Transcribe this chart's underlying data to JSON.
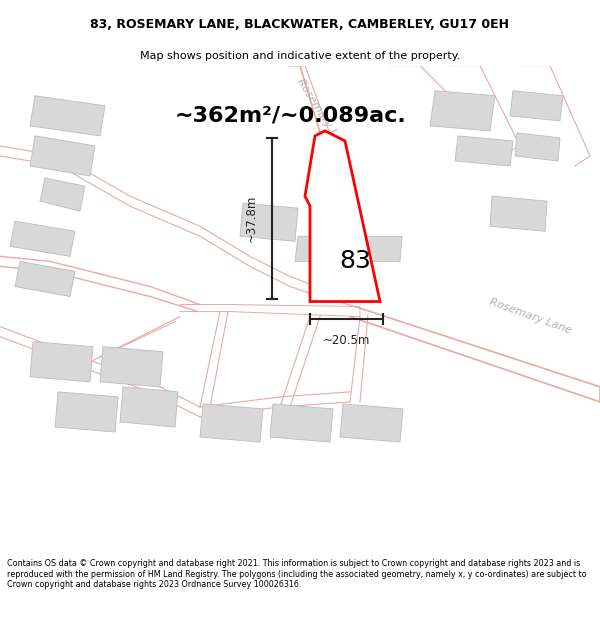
{
  "title": "83, ROSEMARY LANE, BLACKWATER, CAMBERLEY, GU17 0EH",
  "subtitle": "Map shows position and indicative extent of the property.",
  "area_text": "~362m²/~0.089ac.",
  "dim_width": "~20.5m",
  "dim_height": "~37.8m",
  "label_number": "83",
  "footer": "Contains OS data © Crown copyright and database right 2021. This information is subject to Crown copyright and database rights 2023 and is reproduced with the permission of HM Land Registry. The polygons (including the associated geometry, namely x, y co-ordinates) are subject to Crown copyright and database rights 2023 Ordnance Survey 100026316.",
  "road_color": "#e8a8a8",
  "building_fill": "#d8d8d8",
  "building_edge": "#bbbbbb",
  "road_label_color": "#aaaaaa",
  "map_bg": "#ffffff",
  "plot_color": "#ff0000",
  "annotation_color": "#222222"
}
